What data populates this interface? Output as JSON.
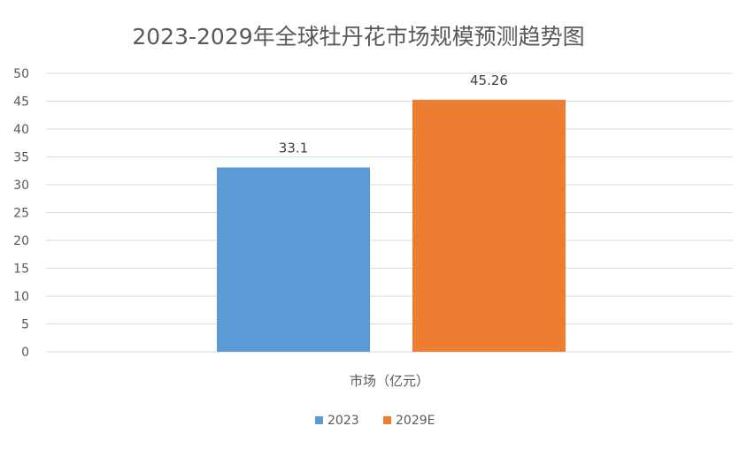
{
  "chart_data": {
    "type": "bar",
    "title": "2023-2029年全球牡丹花市场规模预测趋势图",
    "categories": [
      "市场（亿元）"
    ],
    "series": [
      {
        "name": "2023",
        "values": [
          33.1
        ],
        "color": "#5B9BD5",
        "label": "33.1"
      },
      {
        "name": "2029E",
        "values": [
          45.26
        ],
        "color": "#ED7D31",
        "label": "45.26"
      }
    ],
    "ylim": [
      0,
      50
    ],
    "yticks": [
      "0",
      "5",
      "10",
      "15",
      "20",
      "25",
      "30",
      "35",
      "40",
      "45",
      "50"
    ],
    "grid": true,
    "legend_position": "bottom"
  }
}
